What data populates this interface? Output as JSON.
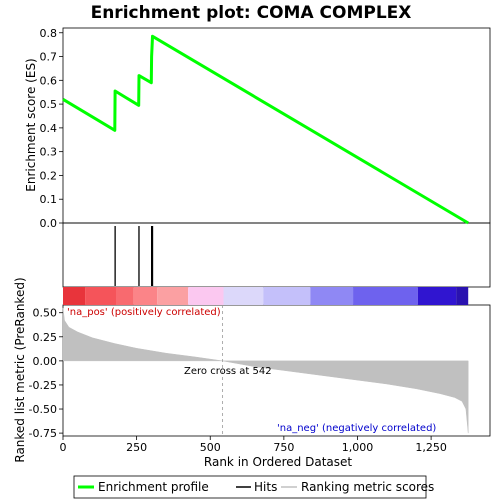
{
  "chart_data": {
    "type": "line",
    "title": "Enrichment plot: COMA COMPLEX",
    "top_panel": {
      "ylabel": "Enrichment score (ES)",
      "ylim": [
        0,
        0.82
      ],
      "yticks": [
        0.0,
        0.1,
        0.2,
        0.3,
        0.4,
        0.5,
        0.6,
        0.7,
        0.8
      ],
      "ytick_labels": [
        "0.0",
        "0.1",
        "0.2",
        "0.3",
        "0.4",
        "0.5",
        "0.6",
        "0.7",
        "0.8"
      ],
      "series": [
        {
          "name": "Enrichment profile",
          "color": "#00ff00",
          "x": [
            0,
            176,
            177,
            257,
            258,
            300,
            301,
            303,
            304,
            1376
          ],
          "y": [
            0.52,
            0.39,
            0.555,
            0.495,
            0.62,
            0.59,
            0.7,
            0.755,
            0.785,
            0.0
          ]
        }
      ]
    },
    "hits": {
      "name": "Hits",
      "color": "#000000",
      "x": [
        177,
        258,
        301,
        304
      ]
    },
    "color_bar": {
      "segments": [
        {
          "from": 0,
          "to": 75,
          "color": "#e8343b"
        },
        {
          "from": 75,
          "to": 180,
          "color": "#f5545a"
        },
        {
          "from": 180,
          "to": 240,
          "color": "#f86a6f"
        },
        {
          "from": 240,
          "to": 320,
          "color": "#fb8488"
        },
        {
          "from": 320,
          "to": 425,
          "color": "#fba0a2"
        },
        {
          "from": 425,
          "to": 545,
          "color": "#fbc8f0"
        },
        {
          "from": 545,
          "to": 680,
          "color": "#dcd8fa"
        },
        {
          "from": 680,
          "to": 840,
          "color": "#c4c0fa"
        },
        {
          "from": 840,
          "to": 985,
          "color": "#8f88f4"
        },
        {
          "from": 985,
          "to": 1205,
          "color": "#6e62ee"
        },
        {
          "from": 1205,
          "to": 1335,
          "color": "#3015d0"
        },
        {
          "from": 1335,
          "to": 1376,
          "color": "#2a12b0"
        }
      ]
    },
    "bottom_panel": {
      "ylabel": "Ranked list metric (PreRanked)",
      "xlabel": "Rank in Ordered Dataset",
      "ylim": [
        -0.78,
        0.58
      ],
      "yticks": [
        -0.75,
        -0.5,
        -0.25,
        0.0,
        0.25,
        0.5
      ],
      "ytick_labels": [
        "-0.75",
        "-0.50",
        "-0.25",
        "0.00",
        "0.25",
        "0.50"
      ],
      "xlim": [
        0,
        1450
      ],
      "xticks": [
        0,
        250,
        500,
        750,
        1000,
        1250
      ],
      "xtick_labels": [
        "0",
        "250",
        "500",
        "750",
        "1,000",
        "1,250"
      ],
      "metric_series": {
        "name": "Ranking metric scores",
        "color": "#c0c0c0",
        "x": [
          0,
          5,
          20,
          50,
          100,
          175,
          250,
          350,
          450,
          542,
          650,
          800,
          950,
          1100,
          1200,
          1280,
          1330,
          1355,
          1368,
          1376
        ],
        "y": [
          0.55,
          0.42,
          0.35,
          0.3,
          0.24,
          0.18,
          0.13,
          0.08,
          0.04,
          0.0,
          -0.06,
          -0.12,
          -0.18,
          -0.24,
          -0.29,
          -0.34,
          -0.38,
          -0.42,
          -0.5,
          -0.75
        ]
      },
      "zero_cross": 542,
      "zero_cross_label": "Zero cross at 542",
      "pos_label": "'na_pos' (positively correlated)",
      "neg_label": "'na_neg' (negatively correlated)",
      "pos_color": "#cc0000",
      "neg_color": "#0000cc"
    },
    "legend": [
      {
        "label": "Enrichment profile",
        "color": "#00ff00"
      },
      {
        "label": "Hits",
        "color": "#000000"
      },
      {
        "label": "Ranking metric scores",
        "color": "#c0c0c0"
      }
    ],
    "legend_position": "bottom",
    "grid": false
  }
}
